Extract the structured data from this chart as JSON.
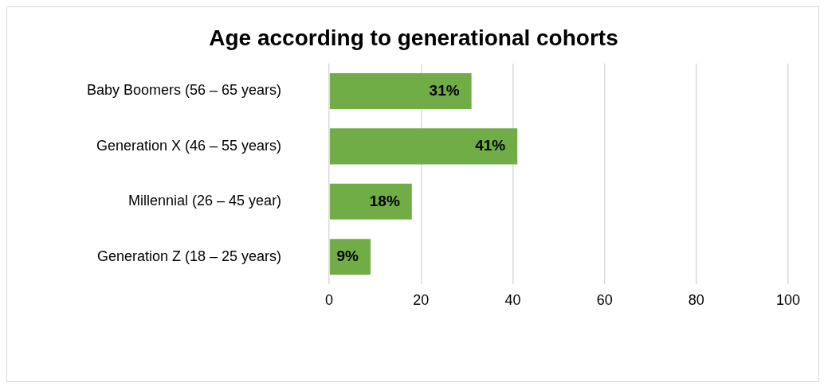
{
  "chart_data": {
    "type": "bar",
    "orientation": "horizontal",
    "title": "Age according to generational cohorts",
    "categories": [
      "Baby Boomers (56 – 65 years)",
      "Generation X (46 – 55 years)",
      "Millennial (26 – 45 year)",
      "Generation Z (18 – 25 years)"
    ],
    "values": [
      31,
      41,
      18,
      9
    ],
    "value_labels": [
      "31%",
      "41%",
      "18%",
      "9%"
    ],
    "color": "#70ad47",
    "xlim": [
      0,
      100
    ],
    "xticks": [
      0,
      20,
      40,
      60,
      80,
      100
    ],
    "grid": "x",
    "legend": false
  }
}
